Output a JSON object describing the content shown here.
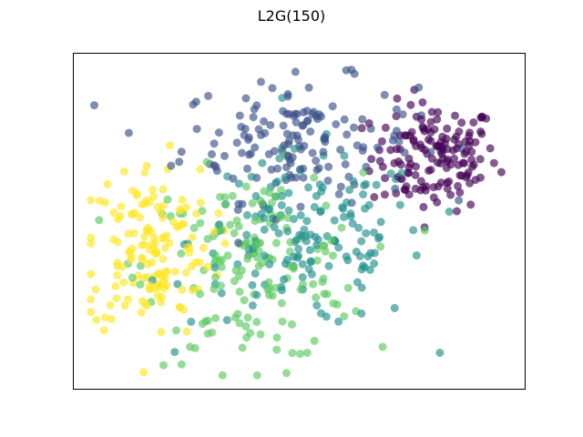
{
  "chart_data": {
    "type": "scatter",
    "title": "L2G(150)",
    "xlabel": "",
    "ylabel": "",
    "xlim": [
      0,
      100
    ],
    "ylim": [
      0,
      100
    ],
    "grid": false,
    "ticks": "none",
    "marker_alpha": 0.65,
    "colormap": "viridis",
    "palette": [
      "#440154",
      "#3b528b",
      "#21918c",
      "#5ec962",
      "#fde725"
    ],
    "clusters": [
      {
        "color": "#440154",
        "center": [
          80,
          69
        ],
        "spread": [
          7,
          8
        ],
        "count": 150
      },
      {
        "color": "#3b528b",
        "center": [
          50,
          74
        ],
        "spread": [
          13,
          9
        ],
        "count": 150
      },
      {
        "color": "#21918c",
        "center": [
          52,
          44
        ],
        "spread": [
          13,
          13
        ],
        "count": 160
      },
      {
        "color": "#5ec962",
        "center": [
          40,
          36
        ],
        "spread": [
          12,
          14
        ],
        "count": 160
      },
      {
        "color": "#fde725",
        "center": [
          17,
          42
        ],
        "spread": [
          7,
          13
        ],
        "count": 150
      }
    ]
  }
}
